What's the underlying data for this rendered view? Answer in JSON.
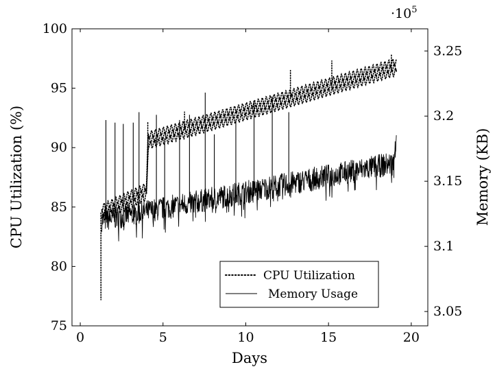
{
  "chart_data": {
    "type": "line",
    "x_axis": {
      "label": "Days",
      "range": [
        -0.5,
        21
      ],
      "ticks": [
        0,
        5,
        10,
        15,
        20
      ],
      "tick_labels": [
        "0",
        "5",
        "10",
        "15",
        "20"
      ]
    },
    "y_left_axis": {
      "label": "CPU Utilization (%)",
      "range": [
        75,
        100
      ],
      "ticks": [
        75,
        80,
        85,
        90,
        95,
        100
      ],
      "tick_labels": [
        "75",
        "80",
        "85",
        "90",
        "95",
        "100"
      ]
    },
    "y_right_axis": {
      "label": "Memory (KB)",
      "range": [
        303900,
        326700
      ],
      "ticks": [
        305000,
        310000,
        315000,
        320000,
        325000
      ],
      "tick_labels": [
        "3.05",
        "3.1",
        "3.15",
        "3.2",
        "3.25"
      ],
      "multiplier_label_base": "·10",
      "multiplier_label_exp": "5"
    },
    "grid": false,
    "legend": {
      "placement": "bottom-right",
      "entries": [
        {
          "name": "CPU Utilization",
          "style": "dotted"
        },
        {
          "name": "Memory Usage",
          "style": "solid"
        }
      ]
    },
    "series": [
      {
        "name": "CPU Utilization",
        "axis": "left",
        "style": "dotted",
        "x_range": [
          1.25,
          19.1
        ],
        "trend": {
          "x": [
            1.3,
            4.0,
            4.1,
            19.1
          ],
          "y": [
            84.5,
            86.3,
            90.6,
            96.8
          ]
        },
        "band_half_width": 0.6,
        "initial_drop": {
          "x": 1.25,
          "y_min": 77.2,
          "y_max": 84.5
        },
        "spikes": [
          {
            "x": 4.08,
            "y": 92.1
          },
          {
            "x": 6.3,
            "y": 93.0
          },
          {
            "x": 12.7,
            "y": 96.5
          },
          {
            "x": 15.2,
            "y": 97.3
          },
          {
            "x": 18.8,
            "y": 97.9
          }
        ]
      },
      {
        "name": "Memory Usage",
        "axis": "right",
        "style": "solid",
        "x_range": [
          1.3,
          19.1
        ],
        "trend": {
          "x": [
            1.3,
            19.0
          ],
          "y": [
            312000,
            316400
          ]
        },
        "noise_amplitude": 900,
        "end_rise": {
          "x": [
            18.95,
            19.1
          ],
          "y": [
            316500,
            318600
          ]
        },
        "spikes": [
          {
            "x": 1.55,
            "y": 319700
          },
          {
            "x": 2.1,
            "y": 319500
          },
          {
            "x": 2.6,
            "y": 319400
          },
          {
            "x": 3.2,
            "y": 319500
          },
          {
            "x": 3.55,
            "y": 320300
          },
          {
            "x": 4.6,
            "y": 320100
          },
          {
            "x": 5.1,
            "y": 318300
          },
          {
            "x": 6.0,
            "y": 319700
          },
          {
            "x": 6.6,
            "y": 320100
          },
          {
            "x": 7.55,
            "y": 321800
          },
          {
            "x": 8.1,
            "y": 318600
          },
          {
            "x": 9.4,
            "y": 319700
          },
          {
            "x": 10.5,
            "y": 321200
          },
          {
            "x": 11.6,
            "y": 321500
          },
          {
            "x": 12.6,
            "y": 320300
          }
        ]
      }
    ]
  }
}
